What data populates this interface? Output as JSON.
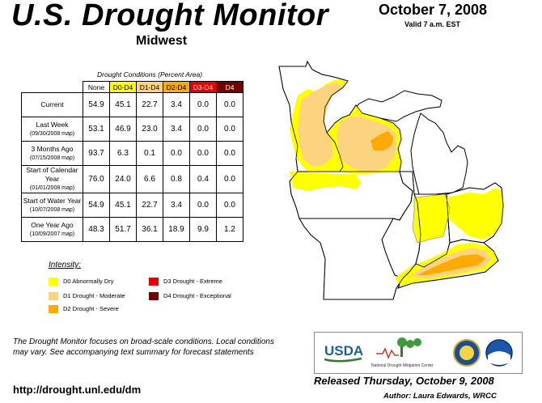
{
  "header": {
    "title": "U.S. Drought Monitor",
    "region": "Midwest",
    "date": "October 7, 2008",
    "valid": "Valid 7 a.m. EST"
  },
  "table": {
    "caption": "Drought Conditions (Percent Area)",
    "columns": [
      {
        "label": "None",
        "color": "#ffffff"
      },
      {
        "label": "D0-D4",
        "color": "#ffff00"
      },
      {
        "label": "D1-D4",
        "color": "#fcd37f"
      },
      {
        "label": "D2-D4",
        "color": "#ffaa00"
      },
      {
        "label": "D3-D4",
        "color": "#e60000"
      },
      {
        "label": "D4",
        "color": "#730000"
      }
    ],
    "rows": [
      {
        "label": "Current",
        "sub": "",
        "values": [
          "54.9",
          "45.1",
          "22.7",
          "3.4",
          "0.0",
          "0.0"
        ]
      },
      {
        "label": "Last Week",
        "sub": "(09/30/2008 map)",
        "values": [
          "53.1",
          "46.9",
          "23.0",
          "3.4",
          "0.0",
          "0.0"
        ]
      },
      {
        "label": "3 Months Ago",
        "sub": "(07/15/2008 map)",
        "values": [
          "93.7",
          "6.3",
          "0.1",
          "0.0",
          "0.0",
          "0.0"
        ]
      },
      {
        "label": "Start of Calendar Year",
        "sub": "(01/01/2008 map)",
        "values": [
          "76.0",
          "24.0",
          "6.6",
          "0.8",
          "0.4",
          "0.0"
        ]
      },
      {
        "label": "Start of Water Year",
        "sub": "(10/07/2008 map)",
        "values": [
          "54.9",
          "45.1",
          "22.7",
          "3.4",
          "0.0",
          "0.0"
        ]
      },
      {
        "label": "One Year Ago",
        "sub": "(10/09/2007 map)",
        "values": [
          "48.3",
          "51.7",
          "36.1",
          "18.9",
          "9.9",
          "1.2"
        ]
      }
    ]
  },
  "legend": {
    "title": "Intensity:",
    "items": [
      {
        "label": "D0 Abnormally Dry",
        "color": "#ffff00"
      },
      {
        "label": "D1 Drought - Moderate",
        "color": "#fcd37f"
      },
      {
        "label": "D2 Drought - Severe",
        "color": "#ffaa00"
      },
      {
        "label": "D3 Drought - Extreme",
        "color": "#e60000"
      },
      {
        "label": "D4 Drought - Exceptional",
        "color": "#730000"
      }
    ]
  },
  "footnote": "The Drought Monitor focuses on broad-scale conditions. Local conditions may vary. See accompanying text summary for forecast statements",
  "url": "http://drought.unl.edu/dm",
  "logos": {
    "usda": "USDA",
    "ndmc": "National Drought Mitigation Center"
  },
  "released": "Released Thursday, October 9, 2008",
  "author": "Author: Laura Edwards, WRCC"
}
